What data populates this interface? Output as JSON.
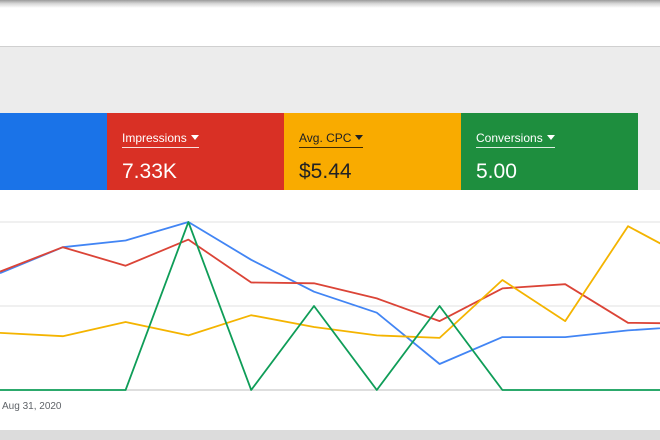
{
  "metrics": [
    {
      "label": "Impressions",
      "value": "7.33K",
      "color": "#d93025"
    },
    {
      "label": "Avg. CPC",
      "value": "$5.44",
      "color": "#f9ab00"
    },
    {
      "label": "Conversions",
      "value": "5.00",
      "color": "#1e8e3e"
    }
  ],
  "first_card_color": "#1a73e8",
  "chart_data": {
    "type": "line",
    "x_labels": [
      "Aug 31, 2020"
    ],
    "ylim": [
      0,
      2
    ],
    "grid": true,
    "series": [
      {
        "color": "#4285f4",
        "values": [
          1.39,
          1.7,
          1.78,
          2.0,
          1.55,
          1.17,
          0.92,
          0.31,
          0.63,
          0.63,
          0.71,
          0.76
        ]
      },
      {
        "color": "#db4437",
        "values": [
          1.41,
          1.7,
          1.48,
          1.79,
          1.28,
          1.27,
          1.09,
          0.82,
          1.21,
          1.26,
          0.8,
          0.79
        ]
      },
      {
        "color": "#f4b400",
        "values": [
          0.68,
          0.64,
          0.81,
          0.65,
          0.89,
          0.75,
          0.65,
          0.62,
          1.31,
          0.82,
          1.95,
          1.55
        ]
      },
      {
        "color": "#0f9d58",
        "values": [
          0.0,
          0.0,
          0.0,
          2.0,
          0.0,
          1.0,
          0.0,
          1.0,
          0.0,
          0.0,
          0.0,
          0.0
        ]
      }
    ]
  }
}
